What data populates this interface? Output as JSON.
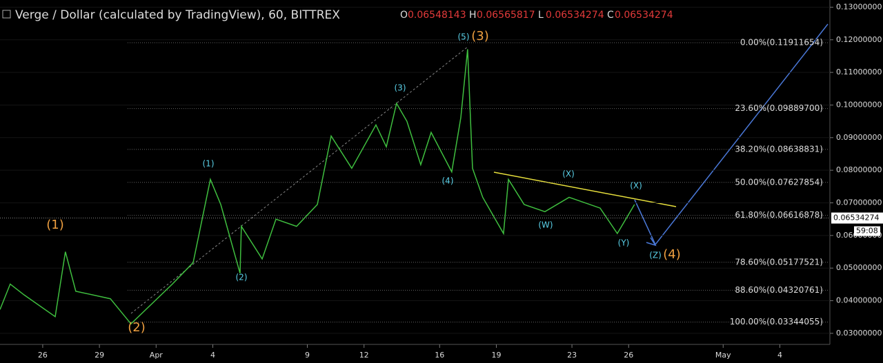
{
  "header": {
    "title": "Verge / Dollar (calculated by TradingView), 60, BITTREX",
    "ohlc": [
      {
        "key": "O",
        "value": "0.06548143"
      },
      {
        "key": "H",
        "value": "0.06565817"
      },
      {
        "key": "L",
        "value": "0.06534274"
      },
      {
        "key": "C",
        "value": "0.06534274"
      }
    ]
  },
  "chart_data": {
    "type": "line",
    "color": "#3fbf3f",
    "x": [
      -2.26,
      -1.72,
      -0.99,
      0.66,
      1.2,
      1.75,
      3.58,
      4.67,
      6.86,
      7.96,
      8.87,
      9.42,
      10.44,
      10.51,
      11.61,
      12.34,
      13.43,
      14.53,
      15.26,
      16.35,
      17.63,
      18.18,
      18.72,
      19.27,
      20,
      20.55,
      21.64,
      22.12,
      22.48,
      22.74,
      23.28,
      24.38,
      24.64,
      25.47,
      26.57,
      27.85,
      29.49,
      30.4,
      31.31
    ],
    "values": [
      0.0373,
      0.0451,
      0.0418,
      0.0351,
      0.055,
      0.0429,
      0.0406,
      0.0329,
      0.0451,
      0.0517,
      0.0772,
      0.0695,
      0.0484,
      0.0628,
      0.0528,
      0.065,
      0.0628,
      0.0695,
      0.0905,
      0.0806,
      0.0939,
      0.0872,
      0.1005,
      0.095,
      0.0817,
      0.0916,
      0.0795,
      0.0961,
      0.1171,
      0.0806,
      0.0717,
      0.0606,
      0.0772,
      0.0695,
      0.0673,
      0.0717,
      0.0684,
      0.0606,
      0.0695
    ],
    "xlim": [
      -2.26,
      42.45
    ],
    "ylim": [
      0.0266,
      0.1322
    ],
    "xticks": [
      {
        "value": 0,
        "label": "26"
      },
      {
        "value": 3,
        "label": "29"
      },
      {
        "value": 6,
        "label": "Apr"
      },
      {
        "value": 9,
        "label": "4"
      },
      {
        "value": 14,
        "label": "9"
      },
      {
        "value": 17,
        "label": "12"
      },
      {
        "value": 21,
        "label": "16"
      },
      {
        "value": 24,
        "label": "19"
      },
      {
        "value": 28,
        "label": "23"
      },
      {
        "value": 31,
        "label": "26"
      },
      {
        "value": 36,
        "label": "May"
      },
      {
        "value": 39,
        "label": "4"
      }
    ],
    "yticks": [
      {
        "value": 0.03,
        "label": "0.03000000"
      },
      {
        "value": 0.04,
        "label": "0.04000000"
      },
      {
        "value": 0.05,
        "label": "0.05000000"
      },
      {
        "value": 0.06,
        "label": "0.06000000"
      },
      {
        "value": 0.07,
        "label": "0.07000000"
      },
      {
        "value": 0.08,
        "label": "0.08000000"
      },
      {
        "value": 0.09,
        "label": "0.09000000"
      },
      {
        "value": 0.1,
        "label": "0.10000000"
      },
      {
        "value": 0.11,
        "label": "0.11000000"
      },
      {
        "value": 0.12,
        "label": "0.12000000"
      },
      {
        "value": 0.13,
        "label": "0.13000000"
      }
    ],
    "fib": [
      {
        "value": 0.11911654,
        "label": "0.00%(0.11911654)"
      },
      {
        "value": 0.098897,
        "label": "23.60%(0.09889700)"
      },
      {
        "value": 0.08638831,
        "label": "38.20%(0.08638831)"
      },
      {
        "value": 0.07627854,
        "label": "50.00%(0.07627854)"
      },
      {
        "value": 0.06616878,
        "label": "61.80%(0.06616878)"
      },
      {
        "value": 0.05177521,
        "label": "78.60%(0.05177521)"
      },
      {
        "value": 0.04320761,
        "label": "88.60%(0.04320761)"
      },
      {
        "value": 0.03344055,
        "label": "100.00%(0.03344055)"
      }
    ],
    "last_price": {
      "value": 0.06534274,
      "label": "0.06534274"
    },
    "countdown": "59:08",
    "waves": [
      "(1)",
      "(2)",
      "(3)",
      "(4)",
      "(1)",
      "(2)",
      "(3)",
      "(4)",
      "(5)",
      "(X)",
      "(W)",
      "(X)",
      "(Y)",
      "(Z)"
    ]
  }
}
